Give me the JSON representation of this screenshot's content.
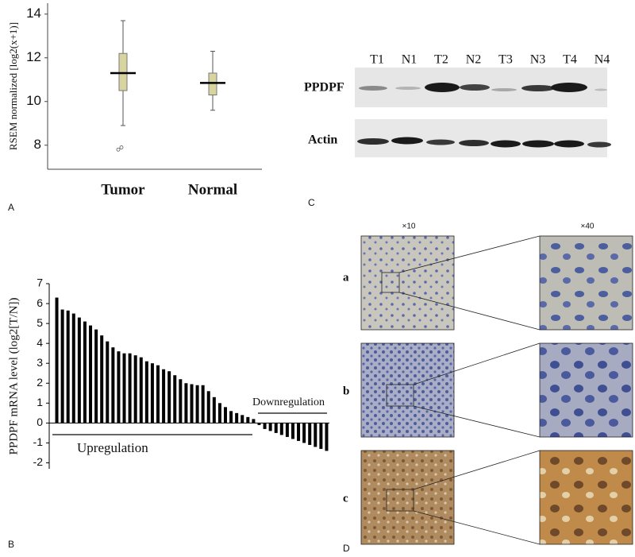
{
  "chart_data": [
    {
      "type": "box",
      "panel": "A",
      "ylabel": "RSEM normalized [log2(x+1)]",
      "categories": [
        "Tumor",
        "Normal"
      ],
      "color": "#d8d4a0",
      "boxes": [
        {
          "low": 8.9,
          "q1": 10.5,
          "median": 11.3,
          "q3": 12.2,
          "high": 13.7,
          "outliers": [
            7.8,
            7.9
          ]
        },
        {
          "low": 9.6,
          "q1": 10.3,
          "median": 10.85,
          "q3": 11.3,
          "high": 12.3,
          "outliers": []
        }
      ],
      "ylim": [
        6.9,
        14.5
      ],
      "yticks": [
        8,
        10,
        12,
        14
      ]
    },
    {
      "type": "bar",
      "panel": "B",
      "ylabel": "PPDPF mRNA level (log2[T/N])",
      "color": "#000000",
      "values": [
        6.3,
        5.7,
        5.65,
        5.5,
        5.3,
        5.1,
        4.9,
        4.7,
        4.4,
        4.1,
        3.8,
        3.6,
        3.5,
        3.5,
        3.4,
        3.3,
        3.1,
        3.0,
        2.9,
        2.7,
        2.6,
        2.4,
        2.2,
        2.0,
        1.95,
        1.9,
        1.9,
        1.6,
        1.3,
        1.0,
        0.8,
        0.6,
        0.5,
        0.4,
        0.3,
        0.2,
        -0.1,
        -0.3,
        -0.4,
        -0.5,
        -0.6,
        -0.7,
        -0.8,
        -0.9,
        -1.0,
        -1.1,
        -1.2,
        -1.3,
        -1.4
      ],
      "annotations": [
        "Upregulation",
        "Downregulation"
      ],
      "ylim": [
        -2.3,
        7
      ],
      "yticks": [
        -2,
        -1,
        0,
        1,
        2,
        3,
        4,
        5,
        6,
        7
      ]
    }
  ],
  "blot": {
    "panel": "C",
    "lanes": [
      "T1",
      "N1",
      "T2",
      "N2",
      "T3",
      "N3",
      "T4",
      "N4"
    ],
    "rows": [
      "PPDPF",
      "Actin"
    ]
  },
  "ihc": {
    "panel": "D",
    "magnifications": [
      "×10",
      "×40"
    ],
    "rows": [
      "a",
      "b",
      "c"
    ]
  }
}
